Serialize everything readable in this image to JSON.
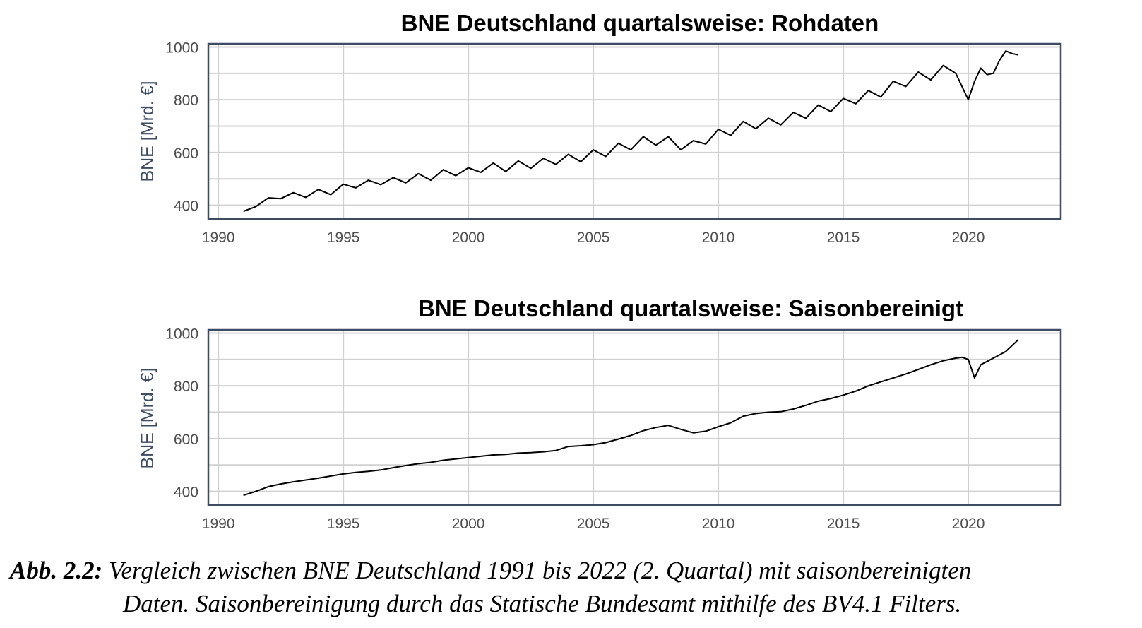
{
  "chart_data": [
    {
      "type": "line",
      "title": "BNE Deutschland quartalsweise: Rohdaten",
      "xlabel": "",
      "ylabel": "BNE [Mrd. €]",
      "xlim": [
        1989.6,
        2023.7
      ],
      "ylim": [
        348,
        1012
      ],
      "xticks": [
        "1990",
        "1995",
        "2000",
        "2005",
        "2010",
        "2015",
        "2020"
      ],
      "yticks": [
        "400",
        "600",
        "800",
        "1000"
      ],
      "grid": true,
      "series": [
        {
          "x": [
            1991.0,
            1991.5,
            1992.0,
            1992.5,
            1993.0,
            1993.5,
            1994.0,
            1994.5,
            1995.0,
            1995.5,
            1996.0,
            1996.5,
            1997.0,
            1997.5,
            1998.0,
            1998.5,
            1999.0,
            1999.5,
            2000.0,
            2000.5,
            2001.0,
            2001.5,
            2002.0,
            2002.5,
            2003.0,
            2003.5,
            2004.0,
            2004.5,
            2005.0,
            2005.5,
            2006.0,
            2006.5,
            2007.0,
            2007.5,
            2008.0,
            2008.5,
            2009.0,
            2009.5,
            2010.0,
            2010.5,
            2011.0,
            2011.5,
            2012.0,
            2012.5,
            2013.0,
            2013.5,
            2014.0,
            2014.5,
            2015.0,
            2015.5,
            2016.0,
            2016.5,
            2017.0,
            2017.5,
            2018.0,
            2018.5,
            2019.0,
            2019.5,
            2020.0,
            2020.25,
            2020.5,
            2020.75,
            2021.0,
            2021.25,
            2021.5,
            2021.75,
            2022.0
          ],
          "values": [
            377,
            395,
            428,
            425,
            448,
            430,
            460,
            440,
            480,
            466,
            495,
            478,
            505,
            485,
            520,
            495,
            535,
            512,
            542,
            525,
            560,
            528,
            568,
            540,
            578,
            555,
            593,
            565,
            610,
            585,
            635,
            610,
            660,
            628,
            660,
            610,
            645,
            632,
            688,
            665,
            718,
            690,
            730,
            705,
            752,
            730,
            780,
            755,
            805,
            785,
            835,
            810,
            870,
            850,
            905,
            875,
            930,
            900,
            800,
            870,
            920,
            895,
            900,
            950,
            985,
            975,
            970
          ]
        }
      ]
    },
    {
      "type": "line",
      "title": "BNE Deutschland quartalsweise: Saisonbereinigt",
      "xlabel": "",
      "ylabel": "BNE [Mrd. €]",
      "xlim": [
        1989.6,
        2023.7
      ],
      "ylim": [
        348,
        1012
      ],
      "xticks": [
        "1990",
        "1995",
        "2000",
        "2005",
        "2010",
        "2015",
        "2020"
      ],
      "yticks": [
        "400",
        "600",
        "800",
        "1000"
      ],
      "grid": true,
      "series": [
        {
          "x": [
            1991.0,
            1991.5,
            1992.0,
            1992.5,
            1993.0,
            1993.5,
            1994.0,
            1994.5,
            1995.0,
            1995.5,
            1996.0,
            1996.5,
            1997.0,
            1997.5,
            1998.0,
            1998.5,
            1999.0,
            1999.5,
            2000.0,
            2000.5,
            2001.0,
            2001.5,
            2002.0,
            2002.5,
            2003.0,
            2003.5,
            2004.0,
            2004.5,
            2005.0,
            2005.5,
            2006.0,
            2006.5,
            2007.0,
            2007.5,
            2008.0,
            2008.5,
            2009.0,
            2009.5,
            2010.0,
            2010.5,
            2011.0,
            2011.5,
            2012.0,
            2012.5,
            2013.0,
            2013.5,
            2014.0,
            2014.5,
            2015.0,
            2015.5,
            2016.0,
            2016.5,
            2017.0,
            2017.5,
            2018.0,
            2018.5,
            2019.0,
            2019.5,
            2019.75,
            2020.0,
            2020.25,
            2020.5,
            2021.0,
            2021.5,
            2022.0
          ],
          "values": [
            385,
            400,
            418,
            428,
            436,
            443,
            450,
            458,
            466,
            472,
            476,
            481,
            490,
            498,
            505,
            510,
            518,
            523,
            528,
            533,
            538,
            540,
            545,
            547,
            550,
            555,
            570,
            573,
            577,
            585,
            598,
            612,
            630,
            642,
            650,
            635,
            622,
            628,
            645,
            660,
            685,
            695,
            700,
            702,
            712,
            726,
            742,
            752,
            765,
            780,
            800,
            815,
            830,
            845,
            862,
            880,
            895,
            905,
            908,
            900,
            830,
            880,
            905,
            930,
            975
          ]
        }
      ]
    }
  ],
  "caption": {
    "label": "Abb. 2.2:",
    "line1": " Vergleich zwischen BNE Deutschland 1991 bis 2022 (2. Quartal) mit saisonbereinigten",
    "line2": "Daten. Saisonbereinigung durch das Statische Bundesamt mithilfe des BV4.1 Filters."
  }
}
